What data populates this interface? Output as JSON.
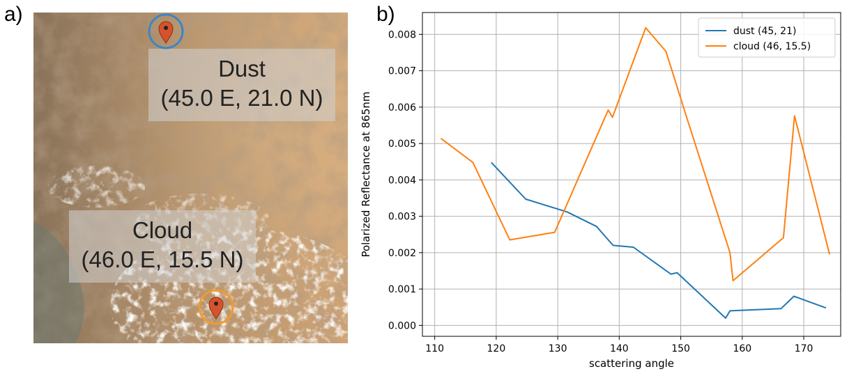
{
  "panels": {
    "a_label": "a)",
    "b_label": "b)"
  },
  "map": {
    "dust_box": {
      "line1": "Dust",
      "line2": "(45.0 E, 21.0 N)"
    },
    "cloud_box": {
      "line1": "Cloud",
      "line2": "(46.0 E, 15.5 N)"
    },
    "colors": {
      "dust_marker_ring": "#3a86c8",
      "cloud_marker_ring": "#f39a2c",
      "pin": "#d5532c"
    }
  },
  "chart_data": {
    "type": "line",
    "title": "",
    "xlabel": "scattering angle",
    "ylabel": "Polarized Reflectance at 865nm",
    "xlim": [
      108,
      176
    ],
    "ylim": [
      -0.0003,
      0.0086
    ],
    "xticks": [
      110,
      120,
      130,
      140,
      150,
      160,
      170
    ],
    "yticks": [
      0.0,
      0.001,
      0.002,
      0.003,
      0.004,
      0.005,
      0.006,
      0.007,
      0.008
    ],
    "ytick_labels": [
      "0.000",
      "0.001",
      "0.002",
      "0.003",
      "0.004",
      "0.005",
      "0.006",
      "0.007",
      "0.008"
    ],
    "grid": true,
    "legend_position": "top-right",
    "series": [
      {
        "name": "dust (45, 21)",
        "color": "#1f77b4",
        "x": [
          119.2,
          124.8,
          131.5,
          136.3,
          139.0,
          142.3,
          148.4,
          149.4,
          157.3,
          158.0,
          166.3,
          168.4,
          173.6
        ],
        "y": [
          0.00448,
          0.00347,
          0.00312,
          0.00272,
          0.0022,
          0.00215,
          0.00141,
          0.00145,
          0.0002,
          0.0004,
          0.00046,
          0.0008,
          0.00048
        ]
      },
      {
        "name": "cloud (46, 15.5)",
        "color": "#ff7f0e",
        "x": [
          111.0,
          116.2,
          122.2,
          129.5,
          138.2,
          138.9,
          144.3,
          147.6,
          151.0,
          158.0,
          158.5,
          166.7,
          168.5,
          174.2
        ],
        "y": [
          0.00514,
          0.00448,
          0.00235,
          0.00256,
          0.00592,
          0.00572,
          0.00818,
          0.00753,
          0.0057,
          0.002,
          0.00123,
          0.00241,
          0.00576,
          0.00195
        ]
      }
    ]
  }
}
